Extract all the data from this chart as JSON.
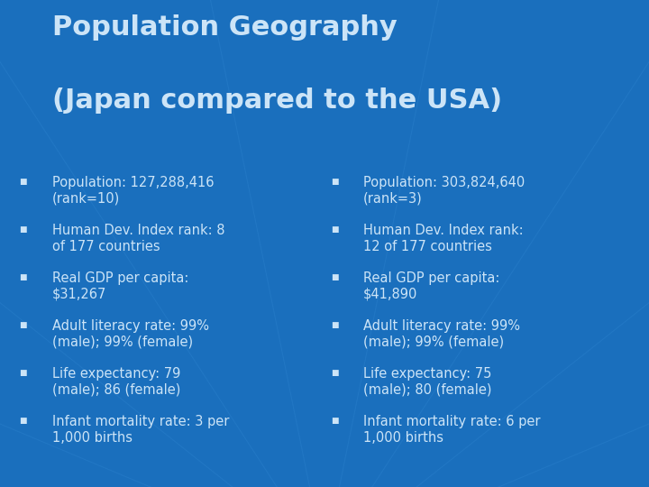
{
  "title_line1": "Population Geography",
  "title_line2": "(Japan compared to the USA)",
  "title_fontsize": 22,
  "background_color": "#1a6fbd",
  "text_color": "#cce4f7",
  "bullet_color": "#cce4f7",
  "left_bullets": [
    "Population: 127,288,416\n(rank=10)",
    "Human Dev. Index rank: 8\nof 177 countries",
    "Real GDP per capita:\n$31,267",
    "Adult literacy rate: 99%\n(male); 99% (female)",
    "Life expectancy: 79\n(male); 86 (female)",
    "Infant mortality rate: 3 per\n1,000 births"
  ],
  "right_bullets": [
    "Population: 303,824,640\n(rank=3)",
    "Human Dev. Index rank:\n12 of 177 countries",
    "Real GDP per capita:\n$41,890",
    "Adult literacy rate: 99%\n(male); 99% (female)",
    "Life expectancy: 75\n(male); 80 (female)",
    "Infant mortality rate: 6 per\n1,000 births"
  ],
  "bullet_fontsize": 10.5,
  "figsize": [
    7.2,
    5.4
  ],
  "dpi": 100,
  "radial_color": "#2a80cc",
  "radial_alpha": 0.45,
  "radial_linewidth": 0.8,
  "num_radial_lines": 20
}
